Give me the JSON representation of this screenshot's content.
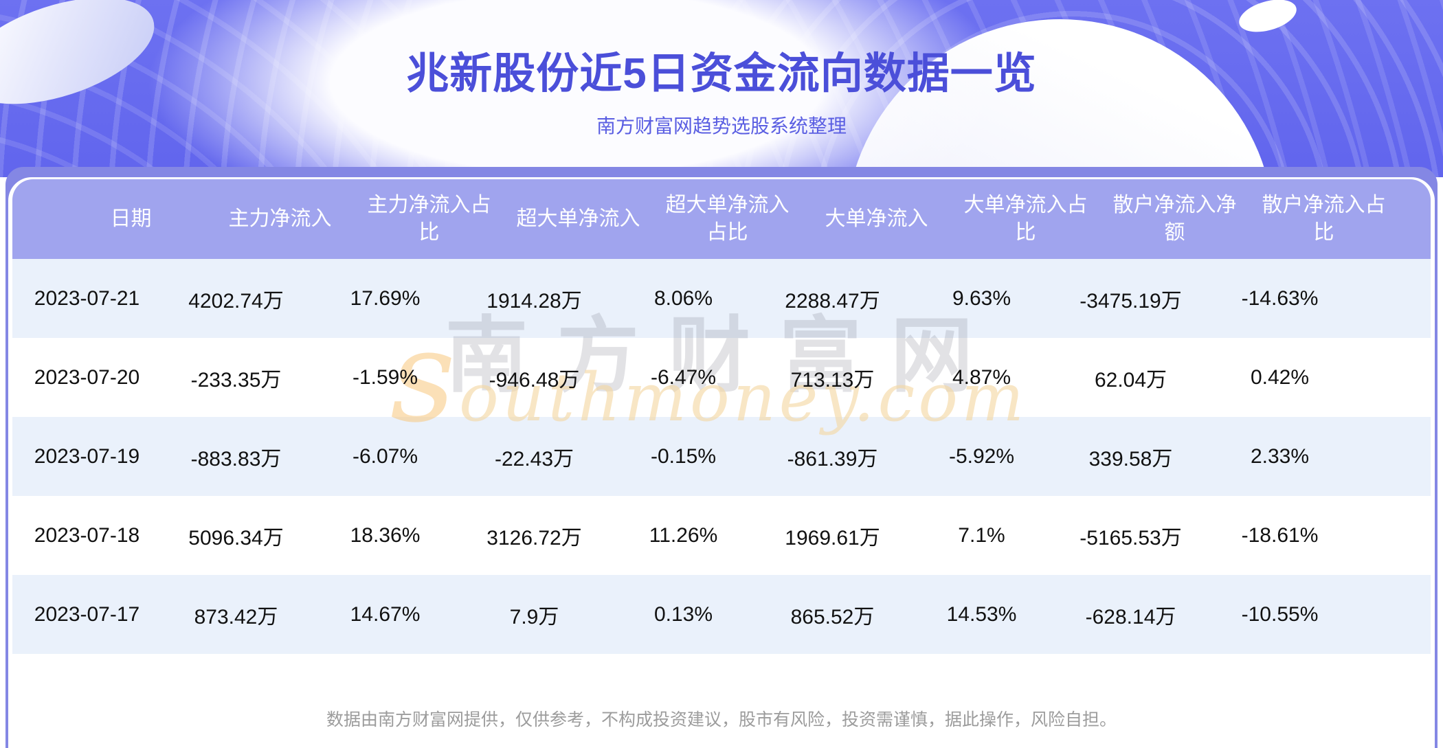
{
  "banner": {
    "title": "兆新股份近5日资金流向数据一览",
    "subtitle": "南方财富网趋势选股系统整理"
  },
  "chart_data": {
    "type": "table",
    "title": "兆新股份近5日资金流向数据一览",
    "columns": [
      "日期",
      "主力净流入",
      "主力净流入占比",
      "超大单净流入",
      "超大单净流入占比",
      "大单净流入",
      "大单净流入占比",
      "散户净流入净额",
      "散户净流入占比"
    ],
    "rows": [
      [
        "2023-07-21",
        "4202.74万",
        "17.69%",
        "1914.28万",
        "8.06%",
        "2288.47万",
        "9.63%",
        "-3475.19万",
        "-14.63%"
      ],
      [
        "2023-07-20",
        "-233.35万",
        "-1.59%",
        "-946.48万",
        "-6.47%",
        "713.13万",
        "4.87%",
        "62.04万",
        "0.42%"
      ],
      [
        "2023-07-19",
        "-883.83万",
        "-6.07%",
        "-22.43万",
        "-0.15%",
        "-861.39万",
        "-5.92%",
        "339.58万",
        "2.33%"
      ],
      [
        "2023-07-18",
        "5096.34万",
        "18.36%",
        "3126.72万",
        "11.26%",
        "1969.61万",
        "7.1%",
        "-5165.53万",
        "-18.61%"
      ],
      [
        "2023-07-17",
        "873.42万",
        "14.67%",
        "7.9万",
        "0.13%",
        "865.52万",
        "14.53%",
        "-628.14万",
        "-10.55%"
      ]
    ]
  },
  "watermark": {
    "cn": "南方财富网",
    "en": "southmoney.com"
  },
  "footer": {
    "disclaimer": "数据由南方财富网提供，仅供参考，不构成投资建议，股市有风险，投资需谨慎，据此操作，风险自担。"
  },
  "colors": {
    "banner_bg": "#6467ee",
    "title_text": "#4b4fd9",
    "subtitle_text": "#5a5ee2",
    "band_bg": "#8487e4",
    "table_header_bg": "#a0a4ee",
    "table_header_text": "#ffffff",
    "row_alt_bg": "#eaf1fb",
    "row_text": "#111111",
    "watermark_orange": "#f6c67c",
    "footer_text": "#9c9c9c"
  }
}
